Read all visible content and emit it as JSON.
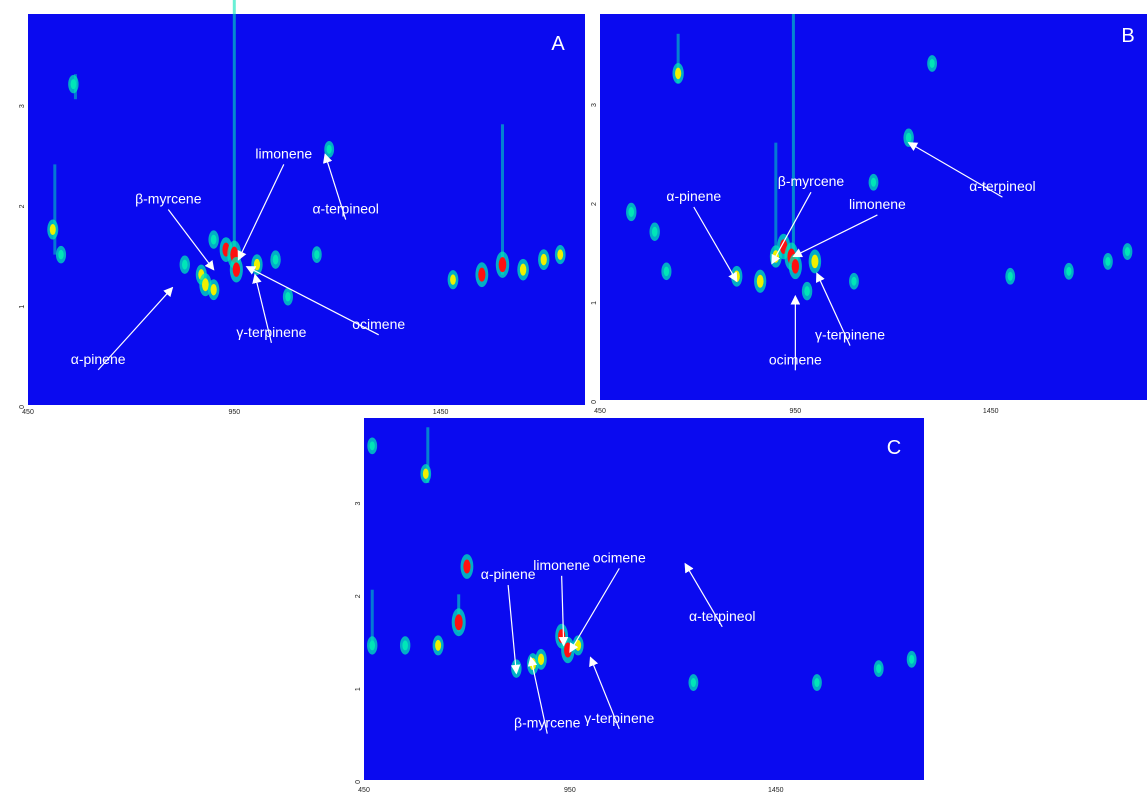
{
  "colors": {
    "background": "#0a0af0",
    "peak_low": "#00e6b8",
    "peak_mid": "#f0f000",
    "peak_high": "#ff1010",
    "annotation": "#ffffff"
  },
  "chart_data": [
    {
      "type": "heatmap",
      "panel_label": "A",
      "x_ticks": [
        "450",
        "950",
        "1450"
      ],
      "y_ticks": [
        "0",
        "1",
        "2",
        "3"
      ],
      "xlim": [
        450,
        1800
      ],
      "ylim": [
        0,
        3.9
      ],
      "annotations": [
        {
          "text": "limonene",
          "label_at": [
            1070,
            2.4
          ],
          "target": [
            960,
            1.45
          ]
        },
        {
          "text": "β-myrcene",
          "label_at": [
            790,
            1.95
          ],
          "target": [
            900,
            1.35
          ]
        },
        {
          "text": "α-terpineol",
          "label_at": [
            1220,
            1.85
          ],
          "target": [
            1170,
            2.5
          ]
        },
        {
          "text": "γ-terpinene",
          "label_at": [
            1040,
            0.62
          ],
          "target": [
            1000,
            1.3
          ]
        },
        {
          "text": "ocimene",
          "label_at": [
            1300,
            0.7
          ],
          "target": [
            980,
            1.38
          ]
        },
        {
          "text": "α-pinene",
          "label_at": [
            620,
            0.35
          ],
          "target": [
            800,
            1.17
          ]
        }
      ],
      "peaks": [
        {
          "x": 560,
          "y": 3.2,
          "i": 0.4
        },
        {
          "x": 510,
          "y": 1.75,
          "i": 0.5
        },
        {
          "x": 530,
          "y": 1.5,
          "i": 0.35
        },
        {
          "x": 830,
          "y": 1.4,
          "i": 0.4
        },
        {
          "x": 870,
          "y": 1.3,
          "i": 0.5
        },
        {
          "x": 880,
          "y": 1.2,
          "i": 0.7
        },
        {
          "x": 900,
          "y": 1.15,
          "i": 0.55
        },
        {
          "x": 930,
          "y": 1.55,
          "i": 0.8
        },
        {
          "x": 950,
          "y": 1.5,
          "i": 1.0
        },
        {
          "x": 955,
          "y": 1.35,
          "i": 0.85
        },
        {
          "x": 1005,
          "y": 1.4,
          "i": 0.55
        },
        {
          "x": 900,
          "y": 1.65,
          "i": 0.4
        },
        {
          "x": 1180,
          "y": 2.55,
          "i": 0.3
        },
        {
          "x": 1050,
          "y": 1.45,
          "i": 0.4
        },
        {
          "x": 1150,
          "y": 1.5,
          "i": 0.3
        },
        {
          "x": 1080,
          "y": 1.08,
          "i": 0.35
        },
        {
          "x": 1550,
          "y": 1.3,
          "i": 0.8
        },
        {
          "x": 1600,
          "y": 1.4,
          "i": 0.9
        },
        {
          "x": 1650,
          "y": 1.35,
          "i": 0.6
        },
        {
          "x": 1700,
          "y": 1.45,
          "i": 0.55
        },
        {
          "x": 1480,
          "y": 1.25,
          "i": 0.45
        },
        {
          "x": 1740,
          "y": 1.5,
          "i": 0.45
        }
      ],
      "streaks": [
        {
          "x": 950,
          "y": 1.3,
          "len": 2.8,
          "i": 0.6
        },
        {
          "x": 1600,
          "y": 1.3,
          "len": 1.5,
          "i": 0.5
        },
        {
          "x": 515,
          "y": 1.5,
          "len": 0.9,
          "i": 0.4
        },
        {
          "x": 565,
          "y": 3.05,
          "len": 0.25,
          "i": 0.4
        }
      ]
    },
    {
      "type": "heatmap",
      "panel_label": "B",
      "x_ticks": [
        "450",
        "950",
        "1450"
      ],
      "y_ticks": [
        "0",
        "1",
        "2",
        "3"
      ],
      "xlim": [
        450,
        1850
      ],
      "ylim": [
        0,
        3.9
      ],
      "annotations": [
        {
          "text": "α-pinene",
          "label_at": [
            690,
            1.95
          ],
          "target": [
            800,
            1.2
          ]
        },
        {
          "text": "β-myrcene",
          "label_at": [
            990,
            2.1
          ],
          "target": [
            890,
            1.38
          ]
        },
        {
          "text": "limonene",
          "label_at": [
            1160,
            1.87
          ],
          "target": [
            945,
            1.45
          ]
        },
        {
          "text": "α-terpineol",
          "label_at": [
            1480,
            2.05
          ],
          "target": [
            1240,
            2.6
          ]
        },
        {
          "text": "γ-terpinene",
          "label_at": [
            1090,
            0.55
          ],
          "target": [
            1005,
            1.28
          ]
        },
        {
          "text": "ocimene",
          "label_at": [
            950,
            0.3
          ],
          "target": [
            950,
            1.05
          ]
        }
      ],
      "peaks": [
        {
          "x": 650,
          "y": 3.3,
          "i": 0.55
        },
        {
          "x": 530,
          "y": 1.9,
          "i": 0.4
        },
        {
          "x": 590,
          "y": 1.7,
          "i": 0.4
        },
        {
          "x": 620,
          "y": 1.3,
          "i": 0.35
        },
        {
          "x": 800,
          "y": 1.25,
          "i": 0.55
        },
        {
          "x": 860,
          "y": 1.2,
          "i": 0.7
        },
        {
          "x": 900,
          "y": 1.45,
          "i": 0.65
        },
        {
          "x": 920,
          "y": 1.55,
          "i": 0.85
        },
        {
          "x": 940,
          "y": 1.45,
          "i": 1.0
        },
        {
          "x": 950,
          "y": 1.35,
          "i": 0.85
        },
        {
          "x": 1000,
          "y": 1.4,
          "i": 0.75
        },
        {
          "x": 980,
          "y": 1.1,
          "i": 0.4
        },
        {
          "x": 1240,
          "y": 2.65,
          "i": 0.4
        },
        {
          "x": 1300,
          "y": 3.4,
          "i": 0.3
        },
        {
          "x": 1150,
          "y": 2.2,
          "i": 0.3
        },
        {
          "x": 1100,
          "y": 1.2,
          "i": 0.3
        },
        {
          "x": 1500,
          "y": 1.25,
          "i": 0.3
        },
        {
          "x": 1650,
          "y": 1.3,
          "i": 0.3
        },
        {
          "x": 1750,
          "y": 1.4,
          "i": 0.3
        },
        {
          "x": 1800,
          "y": 1.5,
          "i": 0.3
        }
      ],
      "streaks": [
        {
          "x": 945,
          "y": 1.3,
          "len": 2.6,
          "i": 0.55
        },
        {
          "x": 650,
          "y": 3.2,
          "len": 0.5,
          "i": 0.5
        },
        {
          "x": 900,
          "y": 1.4,
          "len": 1.2,
          "i": 0.4
        }
      ]
    },
    {
      "type": "heatmap",
      "panel_label": "C",
      "x_ticks": [
        "450",
        "950",
        "1450"
      ],
      "y_ticks": [
        "0",
        "1",
        "2",
        "3"
      ],
      "xlim": [
        450,
        1810
      ],
      "ylim": [
        0,
        3.9
      ],
      "annotations": [
        {
          "text": "limonene",
          "label_at": [
            930,
            2.2
          ],
          "target": [
            935,
            1.45
          ]
        },
        {
          "text": "ocimene",
          "label_at": [
            1070,
            2.28
          ],
          "target": [
            950,
            1.38
          ]
        },
        {
          "text": "α-pinene",
          "label_at": [
            800,
            2.1
          ],
          "target": [
            820,
            1.15
          ]
        },
        {
          "text": "α-terpineol",
          "label_at": [
            1320,
            1.65
          ],
          "target": [
            1230,
            2.33
          ]
        },
        {
          "text": "β-myrcene",
          "label_at": [
            895,
            0.5
          ],
          "target": [
            855,
            1.32
          ]
        },
        {
          "text": "γ-terpinene",
          "label_at": [
            1070,
            0.55
          ],
          "target": [
            1000,
            1.32
          ]
        }
      ],
      "peaks": [
        {
          "x": 600,
          "y": 3.3,
          "i": 0.45
        },
        {
          "x": 470,
          "y": 3.6,
          "i": 0.3
        },
        {
          "x": 700,
          "y": 2.3,
          "i": 0.8
        },
        {
          "x": 680,
          "y": 1.7,
          "i": 1.0
        },
        {
          "x": 630,
          "y": 1.45,
          "i": 0.5
        },
        {
          "x": 550,
          "y": 1.45,
          "i": 0.4
        },
        {
          "x": 470,
          "y": 1.45,
          "i": 0.4
        },
        {
          "x": 860,
          "y": 1.25,
          "i": 0.6
        },
        {
          "x": 880,
          "y": 1.3,
          "i": 0.55
        },
        {
          "x": 930,
          "y": 1.55,
          "i": 0.8
        },
        {
          "x": 945,
          "y": 1.4,
          "i": 0.9
        },
        {
          "x": 970,
          "y": 1.45,
          "i": 0.5
        },
        {
          "x": 820,
          "y": 1.2,
          "i": 0.4
        },
        {
          "x": 1250,
          "y": 1.05,
          "i": 0.3
        },
        {
          "x": 1550,
          "y": 1.05,
          "i": 0.3
        },
        {
          "x": 1700,
          "y": 1.2,
          "i": 0.3
        },
        {
          "x": 1780,
          "y": 1.3,
          "i": 0.3
        }
      ],
      "streaks": [
        {
          "x": 605,
          "y": 3.2,
          "len": 0.6,
          "i": 0.5
        },
        {
          "x": 680,
          "y": 1.6,
          "len": 0.4,
          "i": 0.6
        },
        {
          "x": 470,
          "y": 1.45,
          "len": 0.6,
          "i": 0.4
        }
      ]
    }
  ]
}
